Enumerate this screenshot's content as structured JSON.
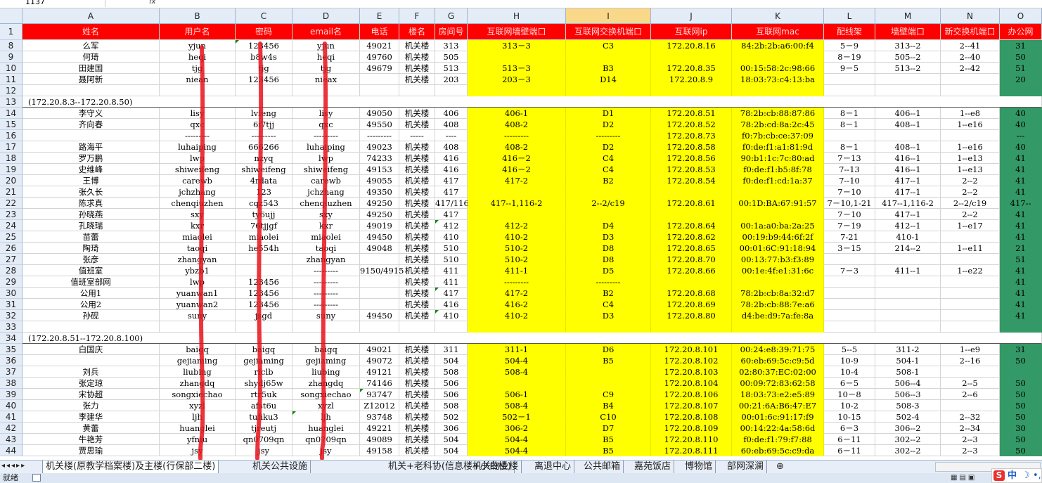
{
  "formula_bar": {
    "name_box": "1137",
    "fx_label": "fx"
  },
  "columns": [
    {
      "letter": "A",
      "header": "姓名"
    },
    {
      "letter": "B",
      "header": "用户名"
    },
    {
      "letter": "C",
      "header": "密码"
    },
    {
      "letter": "D",
      "header": "email名"
    },
    {
      "letter": "E",
      "header": "电话"
    },
    {
      "letter": "F",
      "header": "楼名"
    },
    {
      "letter": "G",
      "header": "房间号"
    },
    {
      "letter": "H",
      "header": "互联网墙壁端口"
    },
    {
      "letter": "I",
      "header": "互联网交换机端口"
    },
    {
      "letter": "J",
      "header": "互联网ip"
    },
    {
      "letter": "K",
      "header": "互联网mac"
    },
    {
      "letter": "L",
      "header": "配线架"
    },
    {
      "letter": "M",
      "header": "墙壁端口"
    },
    {
      "letter": "N",
      "header": "新交换机端口"
    },
    {
      "letter": "O",
      "header": "办公网"
    }
  ],
  "rows": [
    {
      "n": "1",
      "type": "header"
    },
    {
      "n": "8",
      "c": [
        "么军",
        "yjun",
        "123456",
        "yjun",
        "49021",
        "机关楼",
        "313",
        "313－3",
        "C3",
        "172.20.8.16",
        "84:2b:2b:a6:00:f4",
        "5－9",
        "313--2",
        "2--41",
        "31"
      ]
    },
    {
      "n": "9",
      "c": [
        "何琦",
        "heqi",
        "b8w4s",
        "heqi",
        "49760",
        "机关楼",
        "505",
        "",
        "",
        "",
        "",
        "8－19",
        "505--2",
        "2--40",
        "50"
      ]
    },
    {
      "n": "10",
      "c": [
        "田建国",
        "tjg",
        "tjg",
        "tjg",
        "49679",
        "机关楼",
        "513",
        "513－3",
        "B3",
        "172.20.8.35",
        "00:15:58:2c:98:66",
        "9－5",
        "513--2",
        "2--42",
        "51"
      ]
    },
    {
      "n": "11",
      "c": [
        "聂阿新",
        "niean",
        "123456",
        "nieax",
        "",
        "机关楼",
        "203",
        "203－3",
        "D14",
        "172.20.8.9",
        "18:03:73:c4:13:ba",
        "",
        "",
        "",
        "20"
      ]
    },
    {
      "n": "12",
      "c": [
        "",
        "",
        "",
        "",
        "",
        "",
        "",
        "",
        "",
        "",
        "",
        "",
        "",
        "",
        ""
      ]
    },
    {
      "n": "13",
      "type": "section",
      "text": "(172.20.8.3--172.20.8.50)"
    },
    {
      "n": "14",
      "c": [
        "李守义",
        "lisy",
        "lvfeng",
        "lisy",
        "49050",
        "机关楼",
        "406",
        "406-1",
        "D1",
        "172.20.8.51",
        "78:2b:cb:88:87:86",
        "8－1",
        "406--1",
        "1--e8",
        "40"
      ]
    },
    {
      "n": "15",
      "c": [
        "齐向春",
        "qxc",
        "6i7tjj",
        "qxc",
        "49550",
        "机关楼",
        "408",
        "408-2",
        "D2",
        "172.20.8.52",
        "78:2b:cd:8a:2c:45",
        "8－1",
        "408--1",
        "1--e16",
        "40"
      ]
    },
    {
      "n": "16",
      "c": [
        "",
        "---------",
        "---------",
        "---------",
        "---------",
        "-----",
        "----",
        "---------",
        "---------",
        "172.20.8.73",
        "f0:7b:cb:ce:37:09",
        "",
        "",
        "",
        "---"
      ]
    },
    {
      "n": "17",
      "c": [
        "路海平",
        "luhaiping",
        "666266",
        "luhaiping",
        "49023",
        "机关楼",
        "408",
        "408-2",
        "D2",
        "172.20.8.58",
        "f0:de:f1:a1:81:9d",
        "8－1",
        "408--1",
        "1--e16",
        "40"
      ]
    },
    {
      "n": "18",
      "c": [
        "罗万鹏",
        "lwp",
        "nzyq",
        "lwp",
        "74233",
        "机关楼",
        "416",
        "416－2",
        "C4",
        "172.20.8.56",
        "90:b1:1c:7c:80:ad",
        "7－13",
        "416--1",
        "1--e13",
        "41"
      ]
    },
    {
      "n": "19",
      "c": [
        "史维峰",
        "shiweifeng",
        "shiweifeng",
        "shiweifeng",
        "49153",
        "机关楼",
        "416",
        "416－2",
        "C4",
        "172.20.8.53",
        "f0:de:f1:b5:8f:78",
        "7--13",
        "416--1",
        "1--e13",
        "41"
      ]
    },
    {
      "n": "20",
      "c": [
        "王博",
        "carewb",
        "4rdata",
        "carewb",
        "49055",
        "机关楼",
        "417",
        "417-2",
        "B2",
        "172.20.8.54",
        "f0:de:f1:cd:1a:37",
        "7--10",
        "417--1",
        "2--2",
        "41"
      ]
    },
    {
      "n": "21",
      "c": [
        "张久长",
        "jchzhang",
        "123",
        "jchzhang",
        "49350",
        "机关楼",
        "417",
        "",
        "",
        "",
        "",
        "7－10",
        "417--1",
        "2--2",
        "41"
      ]
    },
    {
      "n": "22",
      "c": [
        "陈求真",
        "chenqiuzhen",
        "cqz543",
        "chenqiuzhen",
        "49250",
        "机关楼",
        "417/116",
        "417--1,116-2",
        "2--2/c19",
        "172.20.8.61",
        "00:1D:BA:67:91:57",
        "7－10,1-21",
        "417--1,116-2",
        "2--2/c19",
        "417--"
      ]
    },
    {
      "n": "23",
      "c": [
        "孙晓燕",
        "sxy",
        "ty6ujj",
        "sxy",
        "49250",
        "机关楼",
        "417",
        "",
        "",
        "",
        "",
        "7－10",
        "417--1",
        "2--2",
        "41"
      ]
    },
    {
      "n": "24",
      "c": [
        "孔晓瑞",
        "kxr",
        "76tjjgf",
        "kxr",
        "49019",
        "机关楼",
        "412",
        "412-2",
        "D4",
        "172.20.8.64",
        "00:1a:a0:ba:2a:25",
        "7－19",
        "412--1",
        "1--e17",
        "41"
      ]
    },
    {
      "n": "25",
      "c": [
        "苗蕾",
        "miaolei",
        "miaolei",
        "miaolei",
        "49450",
        "机关楼",
        "410",
        "410-2",
        "D3",
        "172.20.8.62",
        "00:19:b9:44:6f:2f",
        "7-21",
        "410-1",
        "",
        "41"
      ]
    },
    {
      "n": "26",
      "c": [
        "陶琦",
        "taoqi",
        "he554h",
        "taoqi",
        "49048",
        "机关楼",
        "510",
        "510-2",
        "D8",
        "172.20.8.65",
        "00:01:6C:91:18:94",
        "3－15",
        "214--2",
        "1--e11",
        "21"
      ]
    },
    {
      "n": "27",
      "c": [
        "张彦",
        "zhangyan",
        "",
        "zhangyan",
        "",
        "机关楼",
        "510",
        "510-2",
        "D8",
        "172.20.8.70",
        "00:13:77:b3:f3:89",
        "",
        "",
        "",
        "51"
      ]
    },
    {
      "n": "28",
      "c": [
        "值班室",
        "ybzb1",
        "",
        "---------",
        "9150/4915",
        "机关楼",
        "411",
        "411-1",
        "D5",
        "172.20.8.66",
        "00:1e:4f:e1:31:6c",
        "7－3",
        "411--1",
        "1--e22",
        "41"
      ]
    },
    {
      "n": "29",
      "c": [
        "值班室部网",
        "lwp",
        "123456",
        "---------",
        "",
        "机关楼",
        "411",
        "---------",
        "---------",
        "",
        "",
        "",
        "",
        "",
        "41"
      ]
    },
    {
      "n": "30",
      "c": [
        "公用1",
        "yuanwan1",
        "123456",
        "---------",
        "",
        "机关楼",
        "417",
        "417-2",
        "B2",
        "172.20.8.68",
        "78:2b:cb:8a:32:d7",
        "",
        "",
        "",
        "41"
      ]
    },
    {
      "n": "31",
      "c": [
        "公用2",
        "yuanwan2",
        "123456",
        "---------",
        "",
        "机关楼",
        "416",
        "416-2",
        "C4",
        "172.20.8.69",
        "78:2b:cb:88:7e:a6",
        "",
        "",
        "",
        "41"
      ]
    },
    {
      "n": "32",
      "c": [
        "孙砚",
        "suny",
        "jsgd",
        "suny",
        "49450",
        "机关楼",
        "410",
        "410-2",
        "D3",
        "172.20.8.80",
        "d4:be:d9:7a:fe:8a",
        "",
        "",
        "",
        "41"
      ]
    },
    {
      "n": "33",
      "c": [
        "",
        "",
        "",
        "",
        "",
        "",
        "",
        "",
        "",
        "",
        "",
        "",
        "",
        "",
        ""
      ]
    },
    {
      "n": "34",
      "type": "section",
      "text": "(172.20.8.51--172.20.8.100)"
    },
    {
      "n": "35",
      "c": [
        "白国庆",
        "baigq",
        "baigq",
        "baigq",
        "49021",
        "机关楼",
        "311",
        "311-1",
        "D6",
        "172.20.8.101",
        "00:24:e8:39:71:75",
        "5--5",
        "311-2",
        "1--e9",
        "31"
      ]
    },
    {
      "n": "36",
      "c": [
        "",
        "gejiaming",
        "gejiaming",
        "gejiaming",
        "49072",
        "机关楼",
        "504",
        "504-4",
        "B5",
        "172.20.8.102",
        "60:eb:69:5c:c9:5d",
        "10-9",
        "504-1",
        "2--16",
        "50"
      ]
    },
    {
      "n": "37",
      "c": [
        "刘兵",
        "liubing",
        "rfclb",
        "liubing",
        "49121",
        "机关楼",
        "508",
        "508-4",
        "",
        "172.20.8.103",
        "02:80:37:EC:02:00",
        "10-4",
        "508-1",
        "",
        ""
      ]
    },
    {
      "n": "38",
      "c": [
        "张定琼",
        "zhangdq",
        "shydj65w",
        "zhangdq",
        "74146",
        "机关楼",
        "506",
        "",
        "",
        "172.20.8.104",
        "00:09:72:83:62:58",
        "6－5",
        "506--4",
        "2--5",
        "50"
      ]
    },
    {
      "n": "39",
      "c": [
        "宋协超",
        "songxiechao",
        "rtr5uk",
        "songxiechao",
        "93747",
        "机关楼",
        "506",
        "506-1",
        "C9",
        "172.20.8.106",
        "18:03:73:e2:e5:89",
        "10－8",
        "506--3",
        "2--6",
        "50"
      ]
    },
    {
      "n": "40",
      "c": [
        "张力",
        "xyzl",
        "afst6u",
        "xyzl",
        "Z12012",
        "机关楼",
        "508",
        "508-4",
        "B4",
        "172.20.8.107",
        "00:21:6A:B6:47:E7",
        "10-2",
        "508-3",
        "",
        "50"
      ]
    },
    {
      "n": "41",
      "c": [
        "李建华",
        "ljh",
        "tufiku3",
        "ljh",
        "93748",
        "机关楼",
        "502",
        "502－1",
        "C10",
        "172.20.8.108",
        "00:01:6c:91:17:f9",
        "10-15",
        "502-4",
        "2--32",
        "50"
      ]
    },
    {
      "n": "42",
      "c": [
        "黄蕾",
        "huanglei",
        "tjreutj",
        "huanglei",
        "49221",
        "机关楼",
        "306",
        "306-2",
        "D7",
        "172.20.8.109",
        "00:14:22:4a:58:6d",
        "6－3",
        "306--2",
        "2--34",
        "30"
      ]
    },
    {
      "n": "43",
      "c": [
        "牛艳芳",
        "yfniu",
        "qn0709qn",
        "qn0709qn",
        "49089",
        "机关楼",
        "504",
        "504-4",
        "B5",
        "172.20.8.110",
        "f0:de:f1:79:f7:88",
        "6－11",
        "302--2",
        "2--3",
        "50"
      ]
    },
    {
      "n": "44",
      "c": [
        "贾思瑜",
        "jsy",
        "jsy",
        "jsy",
        "49158",
        "机关楼",
        "504",
        "504-4",
        "B5",
        "172.20.8.111",
        "60:eb:69:5c:c9:da",
        "6－11",
        "302--2",
        "2--3",
        "50"
      ]
    }
  ],
  "sheet_tabs": [
    "机关楼(原教学档案楼)及主楼(行保部二楼)",
    "机关公共设施",
    "机关+老科协(信息楼+小白楼)",
    "机关物业楼",
    "离退中心",
    "公共邮箱",
    "嘉苑饭店",
    "博物馆",
    "部网深澜"
  ],
  "status": {
    "ready": "就绪"
  },
  "ime": {
    "logo": "S",
    "lang": "中",
    "moon": "☽",
    "dot": "•,"
  },
  "colors": {
    "header_red": "#ff0000",
    "highlight_yellow": "#ffff00",
    "office_green": "#339966",
    "annotation_red": "#e8101a"
  }
}
